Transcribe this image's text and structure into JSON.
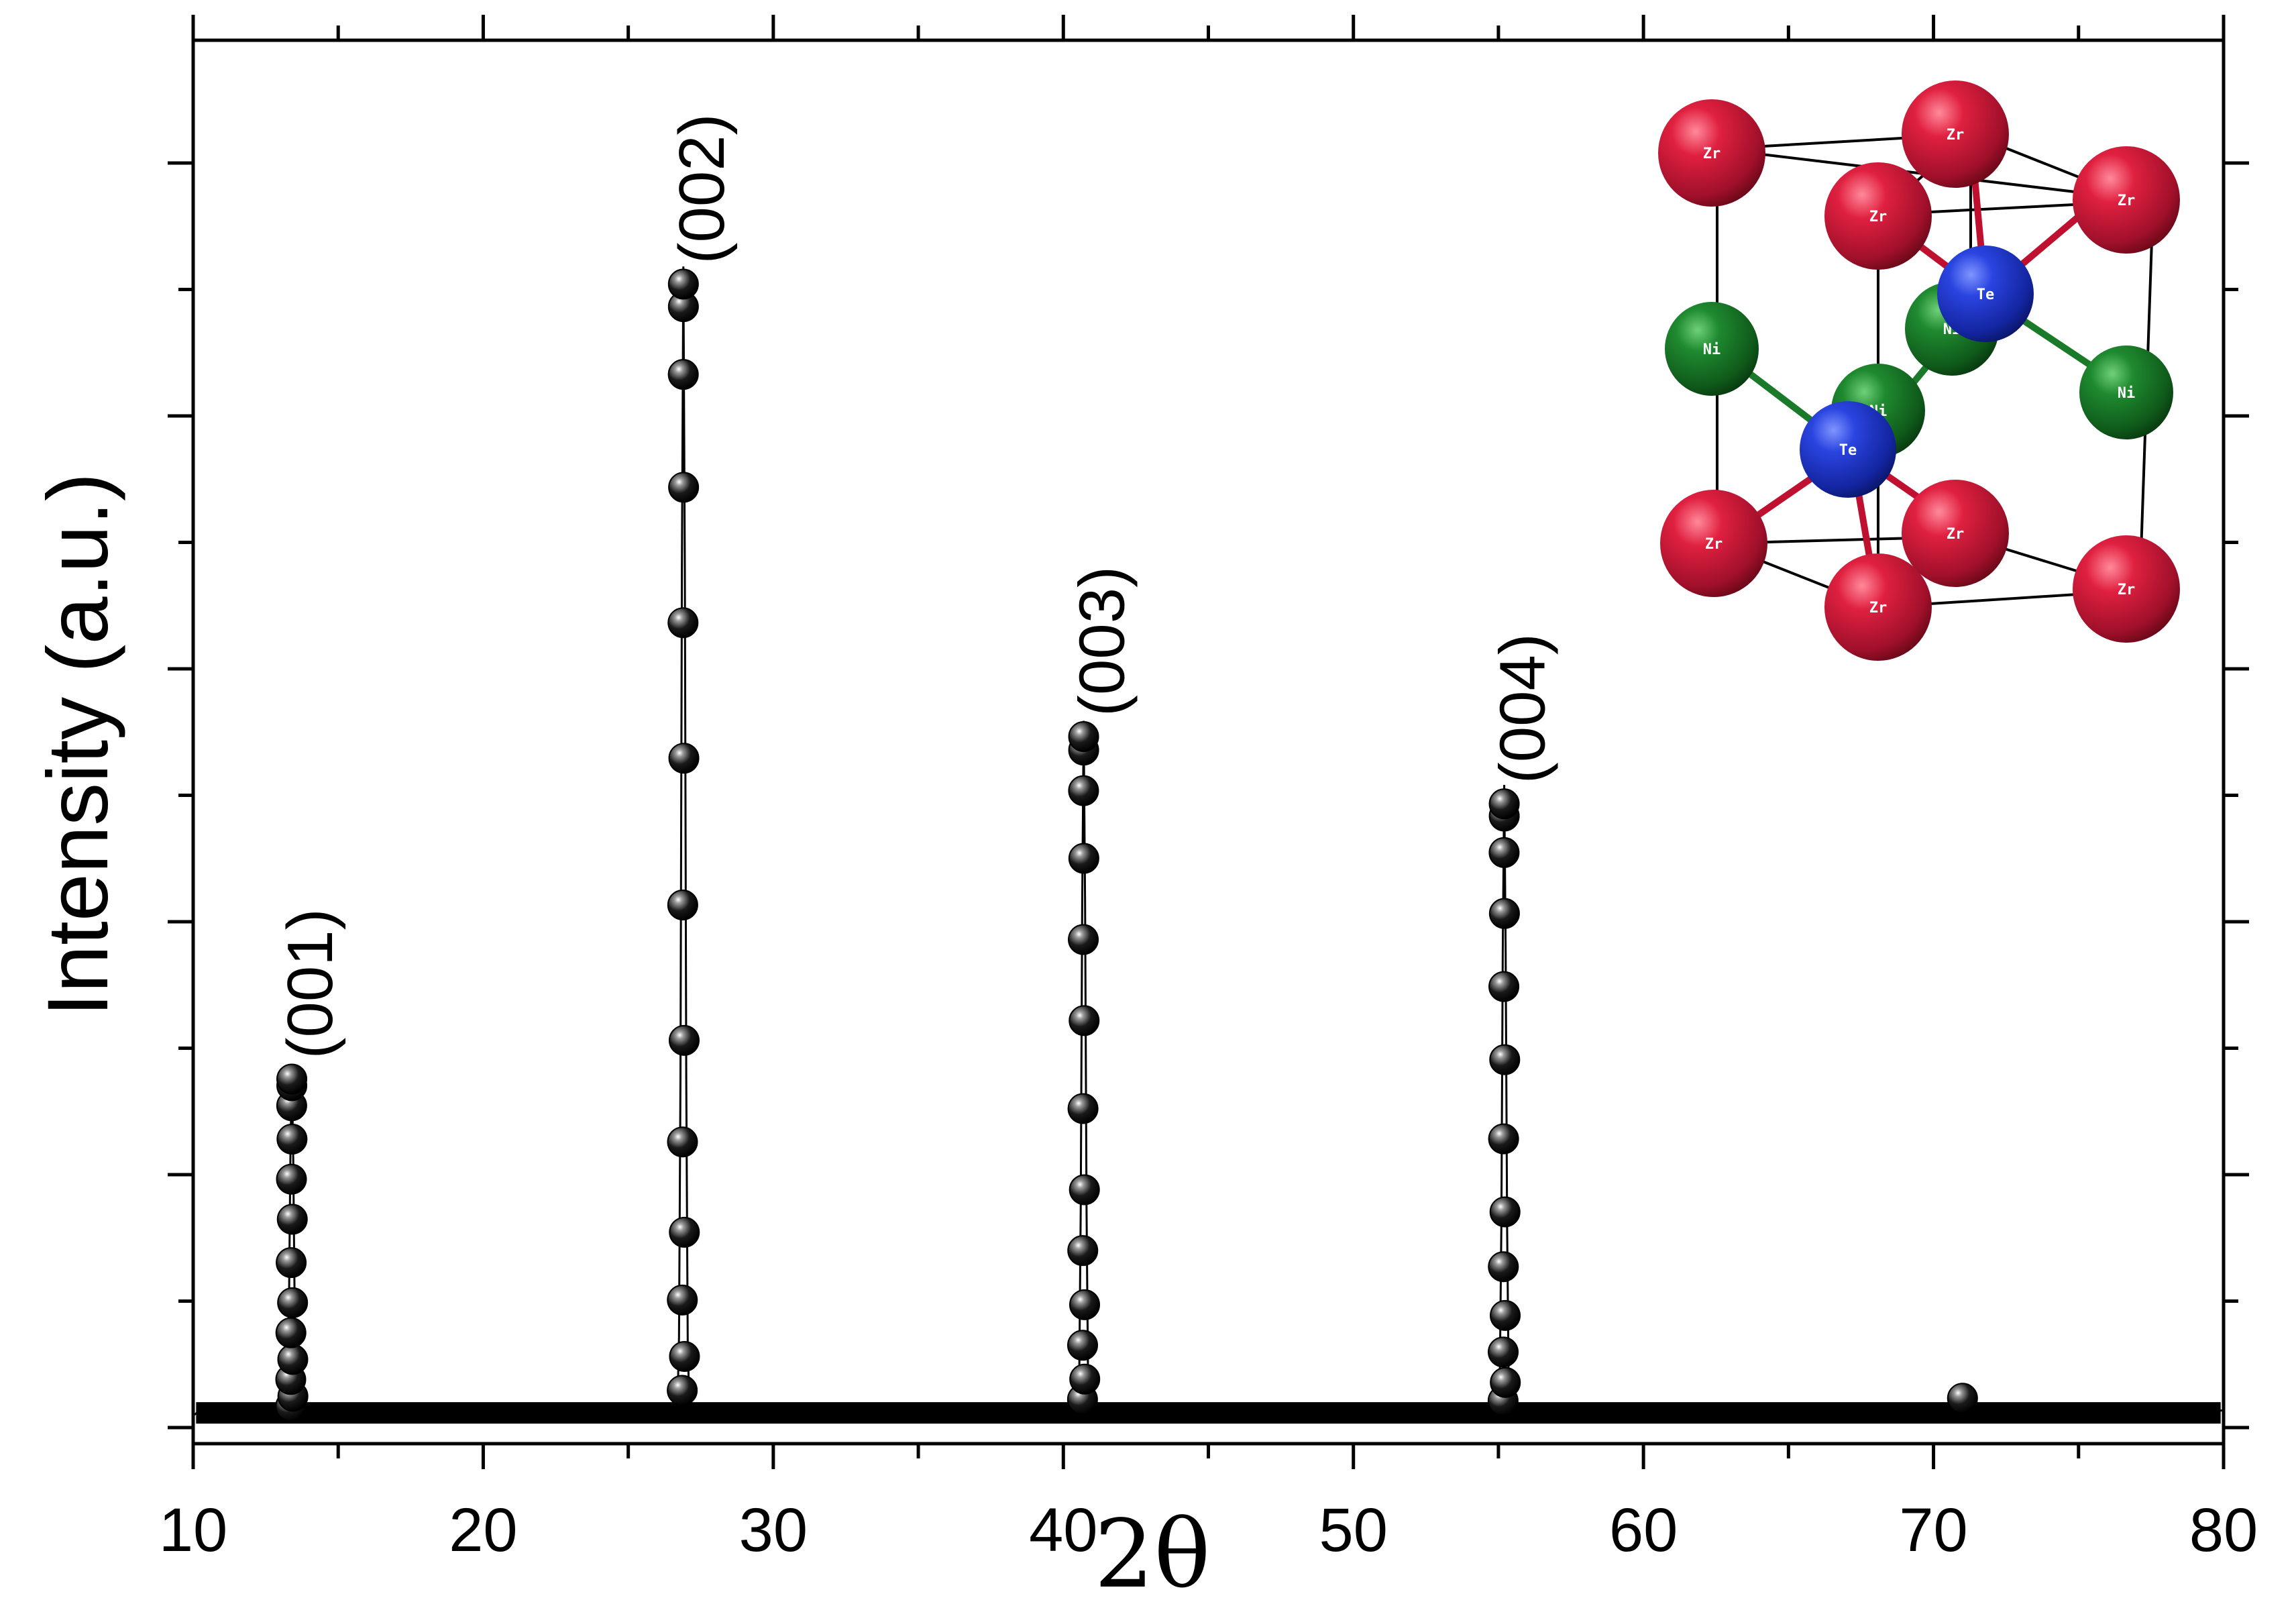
{
  "chart_data": {
    "type": "line",
    "xlabel": "2θ",
    "ylabel": "Intensity (a.u.)",
    "xlim": [
      10,
      80
    ],
    "ylim": [
      0,
      100
    ],
    "x_ticks": [
      10,
      20,
      30,
      40,
      50,
      60,
      70,
      80
    ],
    "y_tick_labels_shown": false,
    "grid": false,
    "marker": "sphere",
    "color": "#000000",
    "baseline": 1.2,
    "peaks": [
      {
        "label": "(001)",
        "x": 13.4,
        "y": 28.5
      },
      {
        "label": "(002)",
        "x": 26.9,
        "y": 93.5
      },
      {
        "label": "(003)",
        "x": 40.7,
        "y": 56.5
      },
      {
        "label": "(004)",
        "x": 55.2,
        "y": 51.0
      }
    ],
    "small_bumps": [
      {
        "x": 71.0,
        "y": 2.0
      }
    ],
    "inset": {
      "type": "crystal-structure",
      "atoms": [
        {
          "element": "Zr",
          "label": "Zr",
          "color": "#d01f3c"
        },
        {
          "element": "Ni",
          "label": "Ni",
          "color": "#1a7a2a"
        },
        {
          "element": "Te",
          "label": "Te",
          "color": "#1f3fd6"
        }
      ]
    }
  }
}
